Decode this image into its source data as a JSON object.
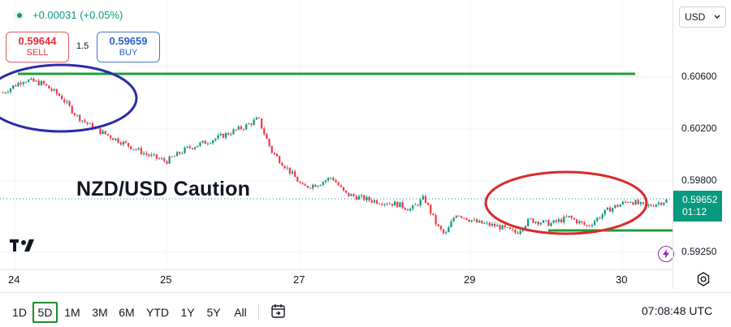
{
  "header": {
    "change_text": "+0.00031 (+0.05%)"
  },
  "trade": {
    "sell_price": "0.59644",
    "sell_label": "SELL",
    "spread": "1.5",
    "buy_price": "0.59659",
    "buy_label": "BUY"
  },
  "caption": "NZD/USD Caution",
  "price_scale": {
    "currency": "USD",
    "ticks": [
      "0.60600",
      "0.60200",
      "0.59800",
      "0.59250"
    ],
    "current_price": "0.59652",
    "countdown": "01:12"
  },
  "time_axis": {
    "labels": [
      "24",
      "25",
      "27",
      "29",
      "30"
    ]
  },
  "ranges": [
    {
      "label": "1D",
      "active": false
    },
    {
      "label": "5D",
      "active": true
    },
    {
      "label": "1M",
      "active": false
    },
    {
      "label": "3M",
      "active": false
    },
    {
      "label": "6M",
      "active": false
    },
    {
      "label": "YTD",
      "active": false
    },
    {
      "label": "1Y",
      "active": false
    },
    {
      "label": "5Y",
      "active": false
    },
    {
      "label": "All",
      "active": false
    }
  ],
  "clock": "07:08:48 UTC",
  "colors": {
    "up": "#089981",
    "down": "#f23645",
    "support_line": "#1e9e3e",
    "blue_ellipse": "#2b2ba8",
    "red_ellipse": "#d92b2b"
  },
  "icons": [
    "live-dot-icon",
    "chevron-down-icon",
    "tradingview-logo",
    "flash-icon",
    "settings-icon",
    "goto-date-icon"
  ],
  "chart_data": {
    "type": "candlestick",
    "y_unit": "USD",
    "x_ticks": [
      "24",
      "25",
      "27",
      "29",
      "30"
    ],
    "y_ticks": [
      0.606,
      0.602,
      0.598,
      0.5925
    ],
    "ylim": [
      0.5915,
      0.6095
    ],
    "current_price": 0.59652,
    "horizontal_lines": [
      0.6061,
      0.5937
    ],
    "close_trace": [
      [
        0,
        0.6048
      ],
      [
        8,
        0.6058
      ],
      [
        15,
        0.6055
      ],
      [
        22,
        0.6045
      ],
      [
        28,
        0.603
      ],
      [
        35,
        0.602
      ],
      [
        45,
        0.601
      ],
      [
        55,
        0.6
      ],
      [
        62,
        0.5995
      ],
      [
        70,
        0.6005
      ],
      [
        80,
        0.6012
      ],
      [
        92,
        0.6022
      ],
      [
        97,
        0.6028
      ],
      [
        102,
        0.6003
      ],
      [
        110,
        0.5985
      ],
      [
        114,
        0.5975
      ],
      [
        120,
        0.5978
      ],
      [
        125,
        0.5983
      ],
      [
        130,
        0.597
      ],
      [
        140,
        0.5965
      ],
      [
        150,
        0.5962
      ],
      [
        155,
        0.5958
      ],
      [
        160,
        0.5967
      ],
      [
        165,
        0.5945
      ],
      [
        168,
        0.5938
      ],
      [
        172,
        0.5955
      ],
      [
        180,
        0.5948
      ],
      [
        188,
        0.5945
      ],
      [
        195,
        0.594
      ],
      [
        200,
        0.595
      ],
      [
        208,
        0.5947
      ],
      [
        215,
        0.5952
      ],
      [
        222,
        0.5945
      ],
      [
        230,
        0.5958
      ],
      [
        238,
        0.5965
      ],
      [
        244,
        0.596
      ],
      [
        252,
        0.5965
      ]
    ]
  }
}
